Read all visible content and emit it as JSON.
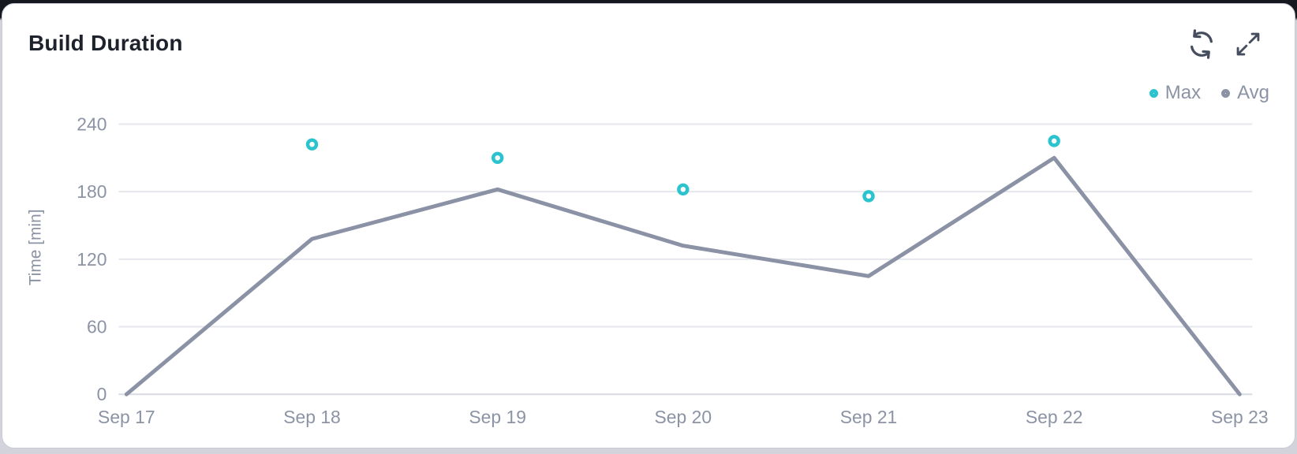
{
  "header": {
    "title": "Build Duration"
  },
  "toolbar": {
    "icons": [
      {
        "name": "refresh-icon",
        "glyph": "circular-sync-arrows"
      },
      {
        "name": "expand-icon",
        "glyph": "diagonal-expand-arrows"
      }
    ]
  },
  "legend": {
    "items": [
      {
        "label": "Max",
        "color": "#2bc4ce"
      },
      {
        "label": "Avg",
        "color": "#8b92a5"
      }
    ]
  },
  "chart_data": {
    "type": "line",
    "title": "Build Duration",
    "categories": [
      "Sep 17",
      "Sep 18",
      "Sep 19",
      "Sep 20",
      "Sep 21",
      "Sep 22",
      "Sep 23"
    ],
    "series": [
      {
        "name": "Max",
        "style": "scatter",
        "color": "#2bc4ce",
        "values": [
          null,
          222,
          210,
          182,
          176,
          225,
          null
        ]
      },
      {
        "name": "Avg",
        "style": "line",
        "color": "#8b92a5",
        "values": [
          0,
          138,
          182,
          132,
          105,
          210,
          0
        ]
      }
    ],
    "xlabel": "",
    "ylabel": "Time [min]",
    "yticks": [
      0,
      60,
      120,
      180,
      240
    ],
    "ylim": [
      0,
      255
    ],
    "grid": true,
    "legend_position": "top-right"
  },
  "colors": {
    "accent_teal": "#2bc4ce",
    "line_gray": "#8b92a5",
    "text_muted": "#8b93a5",
    "title_text": "#1e222c",
    "icon_dark": "#454d5e",
    "gridline": "#e6e7ec",
    "zero_line": "#d9dbe2"
  }
}
